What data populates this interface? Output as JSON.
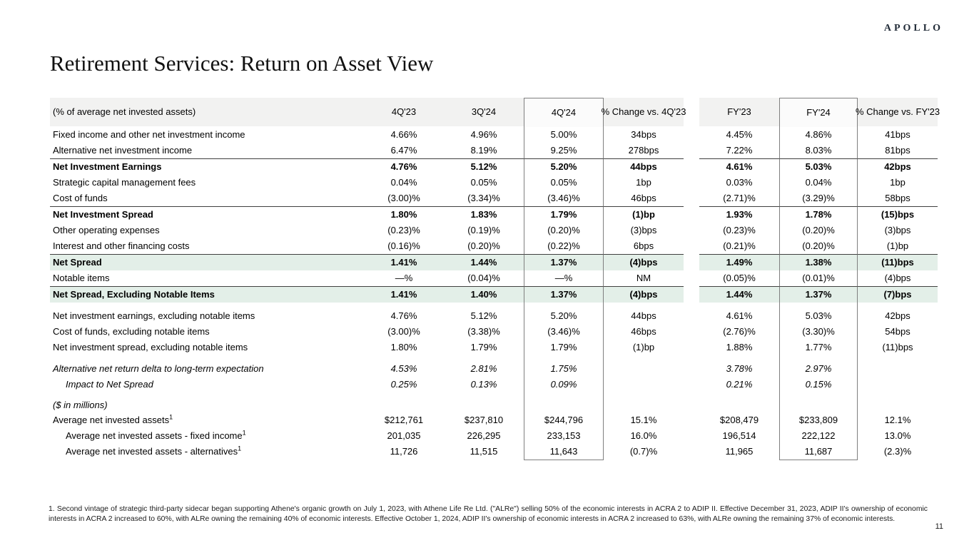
{
  "page": {
    "logo": "APOLLO",
    "title": "Retirement Services: Return on Asset View",
    "page_number": "11",
    "footnote": "1. Second vintage of strategic third-party sidecar began supporting Athene's organic growth on July 1, 2023, with Athene Life Re Ltd. (\"ALRe\") selling 50% of the economic interests in ACRA 2 to ADIP II. Effective December 31, 2023, ADIP II's ownership of economic interests in ACRA 2 increased to 60%, with ALRe owning the remaining 40% of economic interests. Effective October 1, 2024, ADIP II's ownership of economic interests in ACRA 2 increased to 63%, with ALRe owning the remaining 37% of economic interests."
  },
  "colors": {
    "highlight_green": "#e3efe8",
    "header_gray": "#f2f2f1",
    "rule_dark": "#404040",
    "box_border": "#7f7f7f"
  },
  "chart_data": {
    "type": "table",
    "title": "Retirement Services: Return on Asset View",
    "header_label": "(% of average net invested assets)",
    "columns": [
      "4Q'23",
      "3Q'24",
      "4Q'24",
      "% Change vs. 4Q'23",
      "FY'23",
      "FY'24",
      "% Change vs. FY'23"
    ],
    "boxed_columns": [
      "4Q'24",
      "FY'24"
    ],
    "rows": [
      {
        "label": "Fixed income and other net investment income",
        "values": [
          "4.66%",
          "4.96%",
          "5.00%",
          "34bps",
          "4.45%",
          "4.86%",
          "41bps"
        ]
      },
      {
        "label": "Alternative net investment income",
        "values": [
          "6.47%",
          "8.19%",
          "9.25%",
          "278bps",
          "7.22%",
          "8.03%",
          "81bps"
        ]
      },
      {
        "label": "Net Investment Earnings",
        "bold": true,
        "rule": true,
        "values": [
          "4.76%",
          "5.12%",
          "5.20%",
          "44bps",
          "4.61%",
          "5.03%",
          "42bps"
        ]
      },
      {
        "label": "Strategic capital management fees",
        "values": [
          "0.04%",
          "0.05%",
          "0.05%",
          "1bp",
          "0.03%",
          "0.04%",
          "1bp"
        ]
      },
      {
        "label": "Cost of funds",
        "values": [
          "(3.00)%",
          "(3.34)%",
          "(3.46)%",
          "46bps",
          "(2.71)%",
          "(3.29)%",
          "58bps"
        ]
      },
      {
        "label": "Net Investment Spread",
        "bold": true,
        "rule": true,
        "values": [
          "1.80%",
          "1.83%",
          "1.79%",
          "(1)bp",
          "1.93%",
          "1.78%",
          "(15)bps"
        ]
      },
      {
        "label": "Other operating expenses",
        "values": [
          "(0.23)%",
          "(0.19)%",
          "(0.20)%",
          "(3)bps",
          "(0.23)%",
          "(0.20)%",
          "(3)bps"
        ]
      },
      {
        "label": "Interest and other financing costs",
        "values": [
          "(0.16)%",
          "(0.20)%",
          "(0.22)%",
          "6bps",
          "(0.21)%",
          "(0.20)%",
          "(1)bp"
        ]
      },
      {
        "label": "Net Spread",
        "bold": true,
        "rule": true,
        "green": true,
        "values": [
          "1.41%",
          "1.44%",
          "1.37%",
          "(4)bps",
          "1.49%",
          "1.38%",
          "(11)bps"
        ]
      },
      {
        "label": "Notable items",
        "values": [
          "—%",
          "(0.04)%",
          "—%",
          "NM",
          "(0.05)%",
          "(0.01)%",
          "(4)bps"
        ]
      },
      {
        "label": "Net Spread, Excluding Notable Items",
        "bold": true,
        "rule": true,
        "green": true,
        "values": [
          "1.41%",
          "1.40%",
          "1.37%",
          "(4)bps",
          "1.44%",
          "1.37%",
          "(7)bps"
        ]
      },
      {
        "spacer": true
      },
      {
        "label": "Net investment earnings, excluding notable items",
        "values": [
          "4.76%",
          "5.12%",
          "5.20%",
          "44bps",
          "4.61%",
          "5.03%",
          "42bps"
        ]
      },
      {
        "label": "Cost of funds, excluding notable items",
        "values": [
          "(3.00)%",
          "(3.38)%",
          "(3.46)%",
          "46bps",
          "(2.76)%",
          "(3.30)%",
          "54bps"
        ]
      },
      {
        "label": "Net investment spread, excluding notable items",
        "values": [
          "1.80%",
          "1.79%",
          "1.79%",
          "(1)bp",
          "1.88%",
          "1.77%",
          "(11)bps"
        ]
      },
      {
        "spacer": true
      },
      {
        "label": "Alternative net return delta to long-term expectation",
        "italic": true,
        "values": [
          "4.53%",
          "2.81%",
          "1.75%",
          "",
          "3.78%",
          "2.97%",
          ""
        ]
      },
      {
        "label": "Impact to Net Spread",
        "italic": true,
        "indent": 1,
        "values": [
          "0.25%",
          "0.13%",
          "0.09%",
          "",
          "0.21%",
          "0.15%",
          ""
        ]
      },
      {
        "spacer": true
      },
      {
        "label": "($ in millions)",
        "italic": true,
        "halfrow": true,
        "values": [
          "",
          "",
          "",
          "",
          "",
          "",
          ""
        ]
      },
      {
        "label": "Average net invested assets",
        "sup": "1",
        "values": [
          "$212,761",
          "$237,810",
          "$244,796",
          "15.1%",
          "$208,479",
          "$233,809",
          "12.1%"
        ]
      },
      {
        "label": "Average net invested assets - fixed income",
        "sup": "1",
        "indent": 1,
        "values": [
          "201,035",
          "226,295",
          "233,153",
          "16.0%",
          "196,514",
          "222,122",
          "13.0%"
        ]
      },
      {
        "label": "Average net invested assets - alternatives",
        "sup": "1",
        "indent": 1,
        "values": [
          "11,726",
          "11,515",
          "11,643",
          "(0.7)%",
          "11,965",
          "11,687",
          "(2.3)%"
        ]
      }
    ]
  }
}
